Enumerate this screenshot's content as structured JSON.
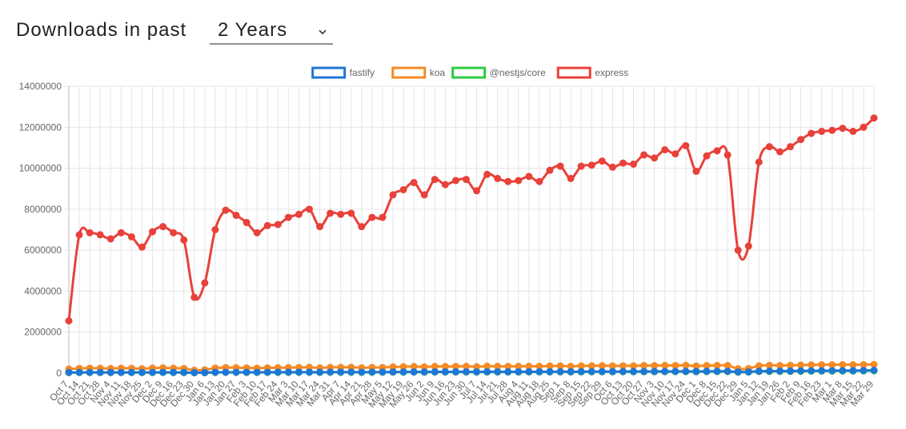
{
  "header": {
    "label": "Downloads in past",
    "period": "2 Years"
  },
  "chart_data": {
    "type": "line",
    "legend": "top",
    "grid": true,
    "categories": [
      "Oct 7",
      "Oct 14",
      "Oct 21",
      "Oct 28",
      "Nov 4",
      "Nov 11",
      "Nov 18",
      "Nov 25",
      "Dec 2",
      "Dec 9",
      "Dec 16",
      "Dec 23",
      "Dec 30",
      "Jan 6",
      "Jan 13",
      "Jan 20",
      "Jan 27",
      "Feb 3",
      "Feb 10",
      "Feb 17",
      "Feb 24",
      "Mar 3",
      "Mar 10",
      "Mar 17",
      "Mar 24",
      "Mar 31",
      "Apr 7",
      "Apr 14",
      "Apr 21",
      "Apr 28",
      "May 5",
      "May 12",
      "May 19",
      "May 26",
      "Jun 2",
      "Jun 9",
      "Jun 16",
      "Jun 23",
      "Jun 30",
      "Jul 7",
      "Jul 14",
      "Jul 21",
      "Jul 28",
      "Aug 4",
      "Aug 11",
      "Aug 18",
      "Aug 25",
      "Sep 1",
      "Sep 8",
      "Sep 15",
      "Sep 22",
      "Sep 29",
      "Oct 6",
      "Oct 13",
      "Oct 20",
      "Oct 27",
      "Nov 3",
      "Nov 10",
      "Nov 17",
      "Nov 24",
      "Dec 1",
      "Dec 8",
      "Dec 15",
      "Dec 22",
      "Dec 29",
      "Jan 5",
      "Jan 12",
      "Jan 19",
      "Jan 26",
      "Feb 2",
      "Feb 9",
      "Feb 16",
      "Feb 23",
      "Mar 1",
      "Mar 8",
      "Mar 15",
      "Mar 22",
      "Mar 29"
    ],
    "ylim": [
      0,
      14000000
    ],
    "yticks": [
      0,
      2000000,
      4000000,
      6000000,
      8000000,
      10000000,
      12000000,
      14000000
    ],
    "series": [
      {
        "name": "fastify",
        "color": "#1f77d4",
        "values": [
          30000,
          32000,
          33000,
          33000,
          33000,
          34000,
          34000,
          32000,
          35000,
          36000,
          34000,
          32000,
          20000,
          24000,
          38000,
          40000,
          40000,
          40000,
          39000,
          41000,
          42000,
          44000,
          45000,
          46000,
          43000,
          47000,
          48000,
          49000,
          46000,
          49000,
          50000,
          54000,
          56000,
          58000,
          55000,
          60000,
          60000,
          61000,
          62000,
          59000,
          64000,
          64000,
          63000,
          64000,
          66000,
          65000,
          68000,
          70000,
          66000,
          71000,
          73000,
          75000,
          74000,
          76000,
          77000,
          80000,
          80000,
          83000,
          83000,
          86000,
          80000,
          86000,
          88000,
          88000,
          55000,
          60000,
          92000,
          98000,
          98000,
          102000,
          108000,
          112000,
          116000,
          118000,
          122000,
          122000,
          128000,
          135000
        ]
      },
      {
        "name": "koa",
        "color": "#f58a25",
        "values": [
          200000,
          230000,
          240000,
          235000,
          225000,
          240000,
          235000,
          215000,
          245000,
          255000,
          240000,
          225000,
          140000,
          160000,
          245000,
          270000,
          265000,
          255000,
          240000,
          255000,
          260000,
          270000,
          275000,
          285000,
          255000,
          280000,
          280000,
          285000,
          260000,
          275000,
          275000,
          300000,
          310000,
          320000,
          300000,
          325000,
          320000,
          325000,
          330000,
          310000,
          335000,
          330000,
          325000,
          330000,
          335000,
          330000,
          345000,
          350000,
          330000,
          350000,
          355000,
          360000,
          350000,
          355000,
          355000,
          370000,
          365000,
          375000,
          370000,
          380000,
          345000,
          365000,
          375000,
          370000,
          210000,
          220000,
          355000,
          380000,
          370000,
          380000,
          390000,
          400000,
          405000,
          405000,
          410000,
          405000,
          410000,
          420000
        ]
      },
      {
        "name": "@nestjs/core",
        "color": "#2ecc40",
        "values": [
          25000,
          27000,
          28000,
          28000,
          27000,
          28000,
          28000,
          26000,
          29000,
          30000,
          28000,
          26000,
          16000,
          19000,
          31000,
          34000,
          34000,
          33000,
          32000,
          34000,
          35000,
          36000,
          37000,
          38000,
          35000,
          39000,
          40000,
          41000,
          38000,
          41000,
          42000,
          45000,
          47000,
          49000,
          46000,
          50000,
          50000,
          51000,
          52000,
          49000,
          53000,
          53000,
          52000,
          53000,
          55000,
          54000,
          57000,
          58000,
          55000,
          59000,
          61000,
          63000,
          62000,
          64000,
          65000,
          67000,
          67000,
          70000,
          70000,
          72000,
          67000,
          72000,
          74000,
          74000,
          46000,
          50000,
          77000,
          82000,
          82000,
          85000,
          90000,
          94000,
          97000,
          99000,
          102000,
          102000,
          107000,
          113000
        ]
      },
      {
        "name": "express",
        "color": "#e8413a",
        "values": [
          2550000,
          6750000,
          6850000,
          6750000,
          6550000,
          6850000,
          6650000,
          6150000,
          6900000,
          7150000,
          6850000,
          6500000,
          3700000,
          4400000,
          7000000,
          7950000,
          7700000,
          7350000,
          6850000,
          7200000,
          7250000,
          7600000,
          7750000,
          8000000,
          7150000,
          7800000,
          7750000,
          7800000,
          7150000,
          7600000,
          7600000,
          8700000,
          8950000,
          9300000,
          8700000,
          9450000,
          9200000,
          9400000,
          9450000,
          8900000,
          9700000,
          9500000,
          9350000,
          9400000,
          9600000,
          9350000,
          9900000,
          10100000,
          9500000,
          10100000,
          10150000,
          10350000,
          10050000,
          10250000,
          10200000,
          10650000,
          10500000,
          10900000,
          10700000,
          11100000,
          9850000,
          10600000,
          10850000,
          10650000,
          6000000,
          6200000,
          10300000,
          11050000,
          10800000,
          11050000,
          11400000,
          11700000,
          11800000,
          11850000,
          11950000,
          11800000,
          12000000,
          12450000
        ]
      }
    ]
  }
}
